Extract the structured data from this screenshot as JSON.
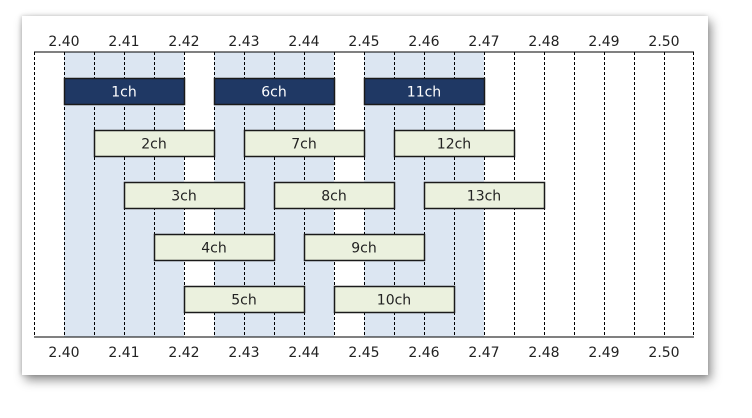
{
  "axis": {
    "ticks": [
      "2.40",
      "2.41",
      "2.42",
      "2.43",
      "2.44",
      "2.45",
      "2.46",
      "2.47",
      "2.48",
      "2.49",
      "2.50"
    ],
    "min": 2.4,
    "max": 2.5,
    "minor_step": 0.005
  },
  "highlight_bands": [
    {
      "start": 2.4,
      "end": 2.42
    },
    {
      "start": 2.425,
      "end": 2.445
    },
    {
      "start": 2.45,
      "end": 2.47
    }
  ],
  "channels": [
    {
      "label": "1ch",
      "start": 2.4,
      "end": 2.42,
      "row": 0,
      "primary": true
    },
    {
      "label": "6ch",
      "start": 2.425,
      "end": 2.445,
      "row": 0,
      "primary": true
    },
    {
      "label": "11ch",
      "start": 2.45,
      "end": 2.47,
      "row": 0,
      "primary": true
    },
    {
      "label": "2ch",
      "start": 2.405,
      "end": 2.425,
      "row": 1,
      "primary": false
    },
    {
      "label": "7ch",
      "start": 2.43,
      "end": 2.45,
      "row": 1,
      "primary": false
    },
    {
      "label": "12ch",
      "start": 2.455,
      "end": 2.475,
      "row": 1,
      "primary": false
    },
    {
      "label": "3ch",
      "start": 2.41,
      "end": 2.43,
      "row": 2,
      "primary": false
    },
    {
      "label": "8ch",
      "start": 2.435,
      "end": 2.455,
      "row": 2,
      "primary": false
    },
    {
      "label": "13ch",
      "start": 2.46,
      "end": 2.48,
      "row": 2,
      "primary": false
    },
    {
      "label": "4ch",
      "start": 2.415,
      "end": 2.435,
      "row": 3,
      "primary": false
    },
    {
      "label": "9ch",
      "start": 2.44,
      "end": 2.46,
      "row": 3,
      "primary": false
    },
    {
      "label": "5ch",
      "start": 2.42,
      "end": 2.44,
      "row": 4,
      "primary": false
    },
    {
      "label": "10ch",
      "start": 2.445,
      "end": 2.465,
      "row": 4,
      "primary": false
    }
  ],
  "colors": {
    "band": "#dce6f2",
    "primary_fill": "#1f3864",
    "primary_text": "#ffffff",
    "secondary_fill": "#ebf1de",
    "secondary_text": "#222222",
    "box_stroke": "#1a1a1a",
    "grid": "#000000"
  }
}
